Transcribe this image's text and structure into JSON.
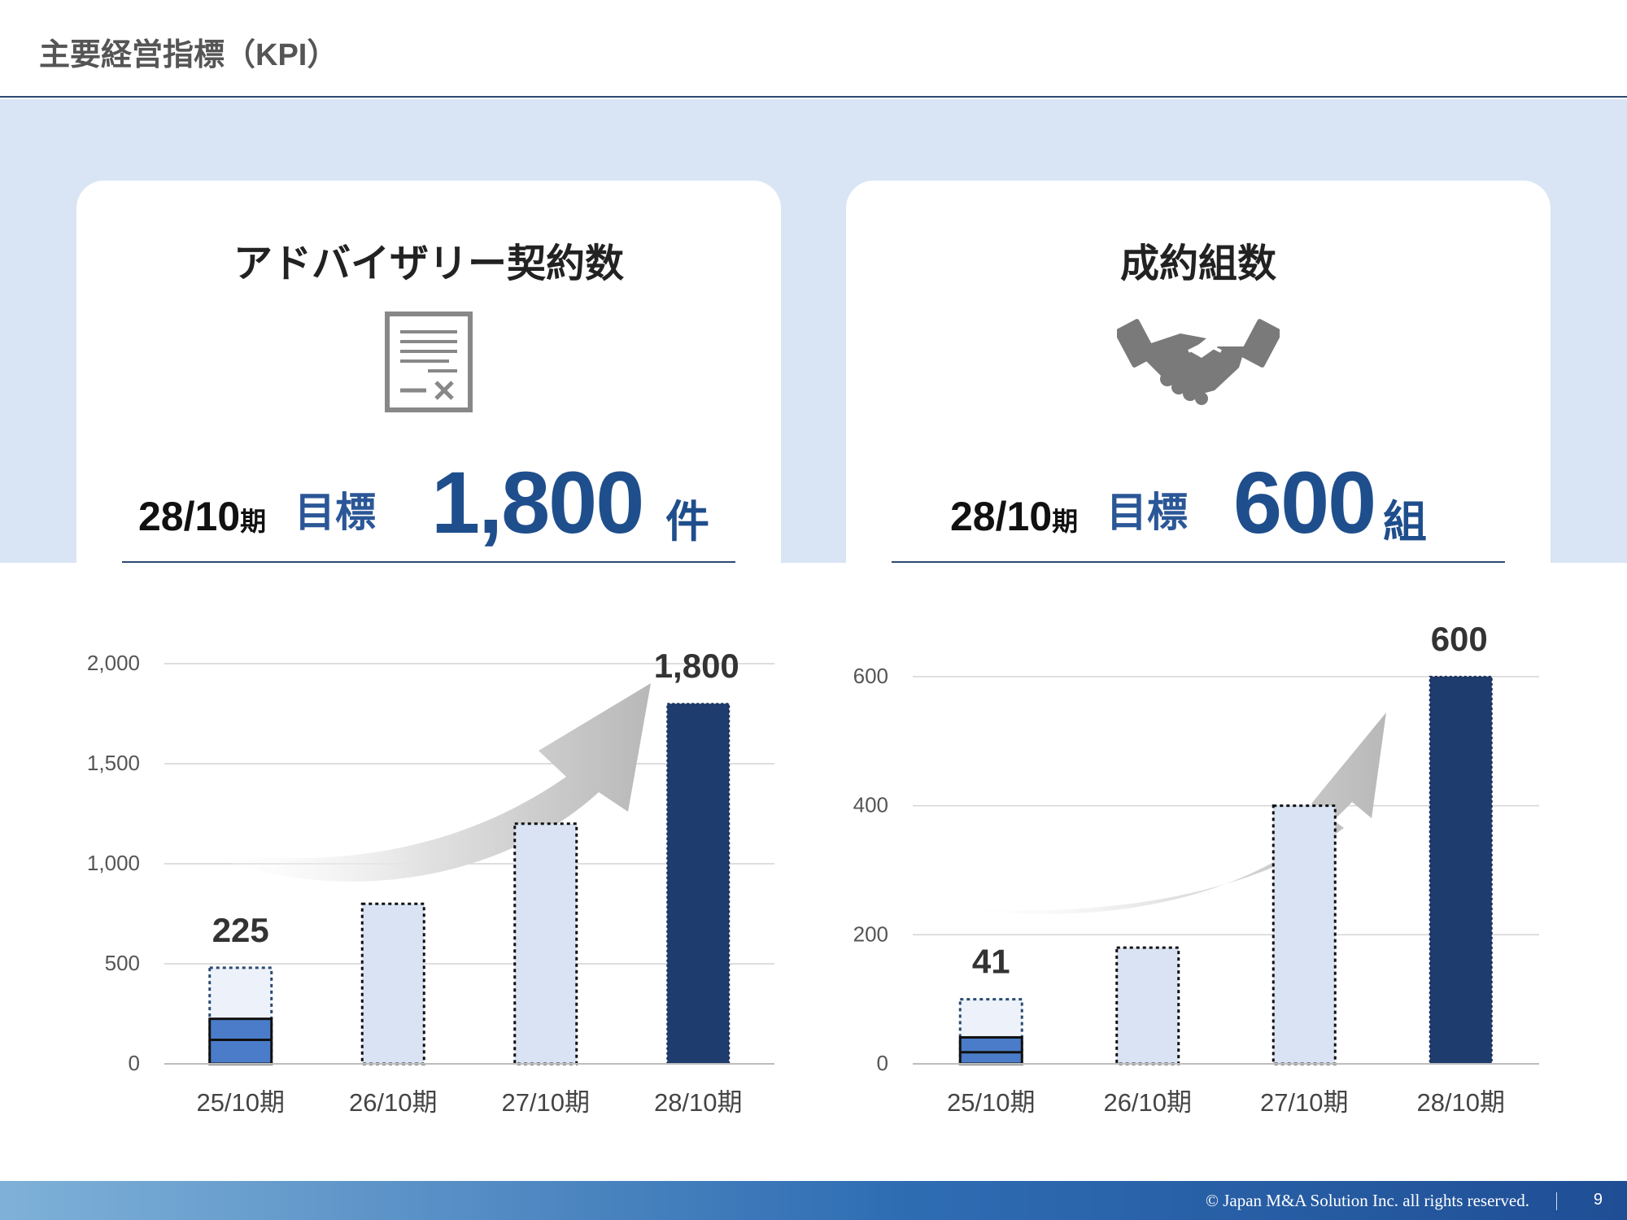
{
  "header": {
    "title": "主要経営指標（KPI）"
  },
  "cards": [
    {
      "title": "アドバイザリー契約数",
      "icon": "contract-document-icon",
      "period": "28/10",
      "period_suffix": "期",
      "target_label": "目標",
      "target_value": "1,800",
      "target_unit": "件"
    },
    {
      "title": "成約組数",
      "icon": "handshake-icon",
      "period": "28/10",
      "period_suffix": "期",
      "target_label": "目標",
      "target_value": "600",
      "target_unit": "組"
    }
  ],
  "chart_data": [
    {
      "type": "bar",
      "categories": [
        "25/10期",
        "26/10期",
        "27/10期",
        "28/10期"
      ],
      "values": [
        225,
        800,
        1200,
        1800
      ],
      "first_bar_outline_value": 480,
      "first_bar_marker_value": 120,
      "data_labels": [
        "225",
        "",
        "",
        "1,800"
      ],
      "ylim": [
        0,
        2000
      ],
      "yticks": [
        0,
        500,
        1000,
        1500,
        2000
      ],
      "ytick_labels": [
        "0",
        "500",
        "1,000",
        "1,500",
        "2,000"
      ],
      "grid": true,
      "colors": {
        "actual": "#4a7cc9",
        "plan": "#d9e3f3",
        "target": "#1f3c6e"
      }
    },
    {
      "type": "bar",
      "categories": [
        "25/10期",
        "26/10期",
        "27/10期",
        "28/10期"
      ],
      "values": [
        41,
        180,
        400,
        600
      ],
      "first_bar_outline_value": 100,
      "first_bar_marker_value": 18,
      "data_labels": [
        "41",
        "",
        "",
        "600"
      ],
      "ylim": [
        0,
        620
      ],
      "yticks": [
        0,
        200,
        400,
        600
      ],
      "ytick_labels": [
        "0",
        "200",
        "400",
        "600"
      ],
      "grid": true,
      "colors": {
        "actual": "#4a7cc9",
        "plan": "#d9e3f3",
        "target": "#1f3c6e"
      }
    }
  ],
  "footer": {
    "copyright": "© Japan M&A Solution Inc. all rights reserved.",
    "page_number": "9"
  }
}
